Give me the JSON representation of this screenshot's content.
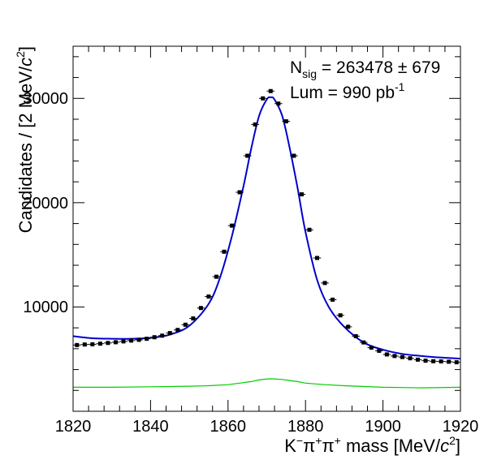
{
  "chart_data": {
    "type": "scatter",
    "xlabel_parts": {
      "main": "K",
      "sup1": "−",
      "mid1": "π",
      "sup2": "+",
      "mid2": "π",
      "sup3": "+",
      "tail": " mass [MeV/",
      "unit_c": "c",
      "unit_exp": "2",
      "close": "]"
    },
    "ylabel_parts": {
      "main": "Candidates / [2 MeV/",
      "unit_c": "c",
      "unit_exp": "2",
      "close": "]"
    },
    "xlim": [
      1820,
      1920
    ],
    "ylim": [
      0,
      35000
    ],
    "x_ticks": [
      1820,
      1840,
      1860,
      1880,
      1900,
      1920
    ],
    "x_tick_labels": [
      "1820",
      "1840",
      "1860",
      "1880",
      "1900",
      "1920"
    ],
    "y_ticks": [
      10000,
      20000,
      30000
    ],
    "y_tick_labels": [
      "10000",
      "20000",
      "30000"
    ],
    "annotations": {
      "nsig_label": "N",
      "nsig_sub": "sig",
      "nsig_value": " =  263478 ± 679",
      "lum_label": "Lum =   990 pb",
      "lum_exp": "-1"
    },
    "series": [
      {
        "kind": "data_points",
        "color": "#000000",
        "x": [
          1821,
          1823,
          1825,
          1827,
          1829,
          1831,
          1833,
          1835,
          1837,
          1839,
          1841,
          1843,
          1845,
          1847,
          1849,
          1851,
          1853,
          1855,
          1857,
          1859,
          1861,
          1863,
          1865,
          1867,
          1869,
          1871,
          1873,
          1875,
          1877,
          1879,
          1881,
          1883,
          1885,
          1887,
          1889,
          1891,
          1893,
          1895,
          1897,
          1899,
          1901,
          1903,
          1905,
          1907,
          1909,
          1911,
          1913,
          1915,
          1917,
          1919
        ],
        "y": [
          6350,
          6400,
          6420,
          6480,
          6550,
          6620,
          6700,
          6780,
          6850,
          6950,
          7100,
          7250,
          7500,
          7800,
          8300,
          8900,
          9900,
          11000,
          12900,
          15300,
          17800,
          21000,
          24500,
          27500,
          30000,
          30700,
          29500,
          27800,
          24500,
          20800,
          17400,
          14700,
          12300,
          10700,
          9200,
          8100,
          7200,
          6600,
          6100,
          5800,
          5450,
          5300,
          5200,
          5080,
          4950,
          4850,
          4800,
          4780,
          4750,
          4700
        ]
      },
      {
        "kind": "fit_curve",
        "color": "#0000cc",
        "x": [
          1820,
          1825,
          1830,
          1835,
          1840,
          1845,
          1850,
          1855,
          1858,
          1861,
          1864,
          1866,
          1868,
          1870,
          1871,
          1872,
          1874,
          1876,
          1878,
          1880,
          1883,
          1886,
          1890,
          1895,
          1900,
          1905,
          1910,
          1915,
          1920
        ],
        "y": [
          7200,
          7000,
          6950,
          6950,
          7050,
          7350,
          8200,
          10300,
          12900,
          16800,
          21600,
          25200,
          28300,
          29900,
          30100,
          29900,
          28300,
          25100,
          21300,
          17200,
          12600,
          10000,
          8100,
          6600,
          5900,
          5500,
          5300,
          5150,
          5050
        ]
      },
      {
        "kind": "background",
        "color": "#00cc00",
        "x": [
          1820,
          1830,
          1840,
          1850,
          1855,
          1860,
          1863,
          1866,
          1868,
          1870,
          1872,
          1874,
          1876,
          1878,
          1880,
          1885,
          1890,
          1900,
          1910,
          1920
        ],
        "y": [
          2300,
          2300,
          2350,
          2400,
          2450,
          2550,
          2700,
          2850,
          3000,
          3100,
          3100,
          3050,
          2950,
          2850,
          2700,
          2550,
          2450,
          2300,
          2250,
          2300
        ]
      }
    ]
  }
}
